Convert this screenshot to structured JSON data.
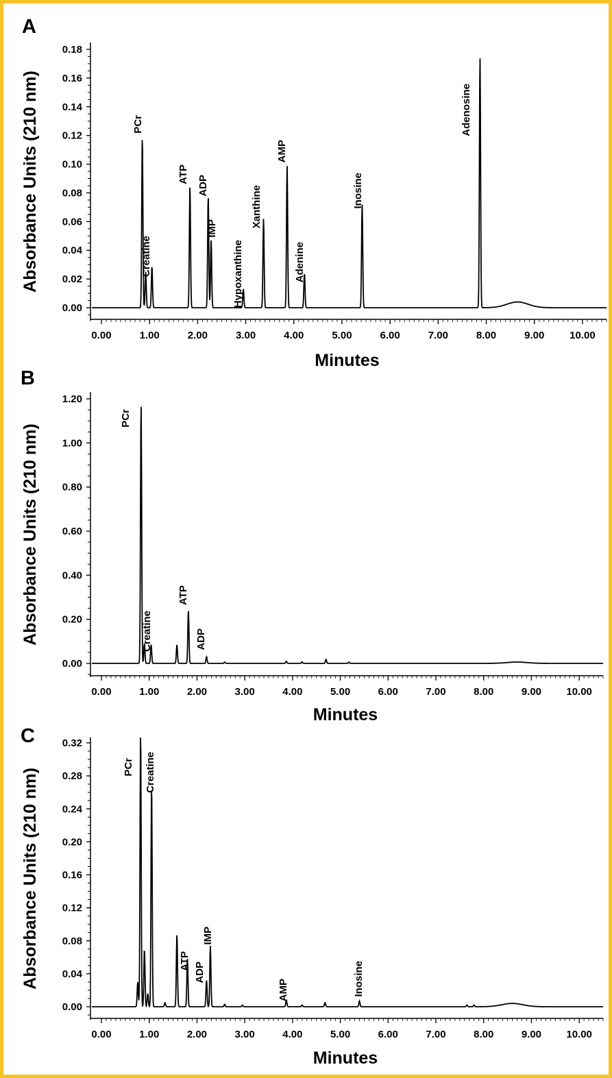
{
  "chart_data": [
    {
      "type": "line",
      "panel_label": "A",
      "xlabel": "Minutes",
      "ylabel": "Absorbance Units (210 nm)",
      "xlim": [
        0,
        10.5
      ],
      "ylim": [
        -0.01,
        0.18
      ],
      "x_ticks": [
        "0.00",
        "1.00",
        "2.00",
        "3.00",
        "4.00",
        "5.00",
        "6.00",
        "7.00",
        "8.00",
        "9.00",
        "10.00"
      ],
      "y_ticks": [
        "0.00",
        "0.02",
        "0.04",
        "0.06",
        "0.08",
        "0.10",
        "0.12",
        "0.14",
        "0.16",
        "0.18"
      ],
      "peaks": [
        {
          "name": "PCr",
          "x": 0.85,
          "y": 0.119,
          "label": "PCr"
        },
        {
          "name": "",
          "x": 0.92,
          "y": 0.025,
          "label": ""
        },
        {
          "name": "Creatine",
          "x": 1.05,
          "y": 0.029,
          "label": "Creatine"
        },
        {
          "name": "ATP",
          "x": 1.84,
          "y": 0.085,
          "label": "ATP"
        },
        {
          "name": "ADP",
          "x": 2.22,
          "y": 0.078,
          "label": "ADP"
        },
        {
          "name": "IMP",
          "x": 2.28,
          "y": 0.047,
          "label": "IMP"
        },
        {
          "name": "Hypoxanthine",
          "x": 2.95,
          "y": 0.013,
          "label": "Hypoxanthine"
        },
        {
          "name": "Xanthine",
          "x": 3.37,
          "y": 0.062,
          "label": "Xanthine"
        },
        {
          "name": "AMP",
          "x": 3.86,
          "y": 0.099,
          "label": "AMP"
        },
        {
          "name": "Adenine",
          "x": 4.22,
          "y": 0.024,
          "label": "Adenine"
        },
        {
          "name": "Inosine",
          "x": 5.42,
          "y": 0.072,
          "label": "Inosine"
        },
        {
          "name": "Adenosine",
          "x": 7.87,
          "y": 0.175,
          "label": "Adenosine"
        }
      ],
      "bumps": [
        {
          "x": 8.65,
          "y": 0.004
        }
      ]
    },
    {
      "type": "line",
      "panel_label": "B",
      "xlabel": "Minutes",
      "ylabel": "Absorbance Units (210 nm)",
      "xlim": [
        0,
        10.5
      ],
      "ylim": [
        -0.06,
        1.24
      ],
      "x_ticks": [
        "0.00",
        "1.00",
        "2.00",
        "3.00",
        "4.00",
        "5.00",
        "6.00",
        "7.00",
        "8.00",
        "9.00",
        "10.00"
      ],
      "y_ticks": [
        "0.00",
        "0.20",
        "0.40",
        "0.60",
        "0.80",
        "1.00",
        "1.20"
      ],
      "peaks": [
        {
          "name": "PCr",
          "x": 0.83,
          "y": 1.18,
          "label": "PCr"
        },
        {
          "name": "",
          "x": 0.9,
          "y": 0.09,
          "label": ""
        },
        {
          "name": "Creatine",
          "x": 1.04,
          "y": 0.085,
          "label": "Creatine"
        },
        {
          "name": "",
          "x": 1.58,
          "y": 0.085,
          "label": ""
        },
        {
          "name": "ATP",
          "x": 1.82,
          "y": 0.24,
          "label": "ATP"
        },
        {
          "name": "ADP",
          "x": 2.2,
          "y": 0.03,
          "label": "ADP"
        },
        {
          "name": "",
          "x": 2.58,
          "y": 0.006,
          "label": ""
        },
        {
          "name": "",
          "x": 3.87,
          "y": 0.01,
          "label": ""
        },
        {
          "name": "",
          "x": 4.2,
          "y": 0.007,
          "label": ""
        },
        {
          "name": "",
          "x": 4.7,
          "y": 0.018,
          "label": ""
        },
        {
          "name": "",
          "x": 5.18,
          "y": 0.006,
          "label": ""
        }
      ],
      "bumps": [
        {
          "x": 8.7,
          "y": 0.006
        }
      ]
    },
    {
      "type": "line",
      "panel_label": "C",
      "xlabel": "Minutes",
      "ylabel": "Absorbance Units (210 nm)",
      "xlim": [
        0,
        10.5
      ],
      "ylim": [
        -0.014,
        0.348
      ],
      "x_ticks": [
        "0.00",
        "1.00",
        "2.00",
        "3.00",
        "4.00",
        "5.00",
        "6.00",
        "7.00",
        "8.00",
        "9.00",
        "10.00"
      ],
      "y_ticks": [
        "0.00",
        "0.04",
        "0.08",
        "0.12",
        "0.16",
        "0.20",
        "0.24",
        "0.28",
        "0.32"
      ],
      "peaks": [
        {
          "name": "",
          "x": 0.76,
          "y": 0.03,
          "label": ""
        },
        {
          "name": "PCr",
          "x": 0.82,
          "y": 0.333,
          "label": "PCr"
        },
        {
          "name": "",
          "x": 0.9,
          "y": 0.07,
          "label": ""
        },
        {
          "name": "",
          "x": 0.97,
          "y": 0.016,
          "label": ""
        },
        {
          "name": "Creatine",
          "x": 1.05,
          "y": 0.27,
          "label": "Creatine"
        },
        {
          "name": "",
          "x": 1.33,
          "y": 0.005,
          "label": ""
        },
        {
          "name": "",
          "x": 1.58,
          "y": 0.088,
          "label": ""
        },
        {
          "name": "ATP",
          "x": 1.8,
          "y": 0.058,
          "label": "ATP"
        },
        {
          "name": "ADP",
          "x": 2.2,
          "y": 0.032,
          "label": "ADP"
        },
        {
          "name": "IMP",
          "x": 2.28,
          "y": 0.074,
          "label": "IMP"
        },
        {
          "name": "",
          "x": 2.58,
          "y": 0.003,
          "label": ""
        },
        {
          "name": "",
          "x": 2.95,
          "y": 0.002,
          "label": ""
        },
        {
          "name": "AMP",
          "x": 3.87,
          "y": 0.008,
          "label": "AMP"
        },
        {
          "name": "",
          "x": 4.2,
          "y": 0.002,
          "label": ""
        },
        {
          "name": "",
          "x": 4.68,
          "y": 0.005,
          "label": ""
        },
        {
          "name": "Inosine",
          "x": 5.4,
          "y": 0.007,
          "label": "Inosine"
        },
        {
          "name": "",
          "x": 7.65,
          "y": 0.002,
          "label": ""
        },
        {
          "name": "",
          "x": 7.8,
          "y": 0.002,
          "label": ""
        }
      ],
      "bumps": [
        {
          "x": 8.6,
          "y": 0.004
        }
      ]
    }
  ]
}
